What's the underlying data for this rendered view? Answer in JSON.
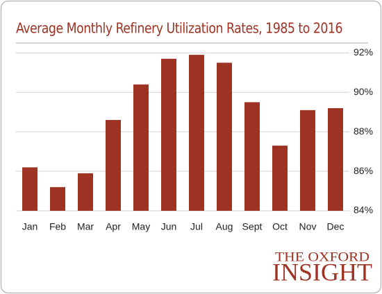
{
  "chart_data": {
    "type": "bar",
    "title": "Average Monthly Refinery Utilization Rates, 1985 to 2016",
    "categories": [
      "Jan",
      "Feb",
      "Mar",
      "Apr",
      "May",
      "Jun",
      "Jul",
      "Aug",
      "Sept",
      "Oct",
      "Nov",
      "Dec"
    ],
    "values": [
      86.2,
      85.2,
      85.9,
      88.6,
      90.4,
      91.7,
      91.9,
      91.5,
      89.5,
      87.3,
      89.1,
      89.2
    ],
    "color": "#9e3223",
    "ylim": [
      84,
      92.5
    ],
    "yticks": [
      {
        "value": 84,
        "label": "84%"
      },
      {
        "value": 86,
        "label": "86%"
      },
      {
        "value": 88,
        "label": "88%"
      },
      {
        "value": 90,
        "label": "90%"
      },
      {
        "value": 92,
        "label": "92%"
      }
    ],
    "grid": true
  },
  "branding": {
    "line1": "The Oxford",
    "line2": "Insight"
  }
}
